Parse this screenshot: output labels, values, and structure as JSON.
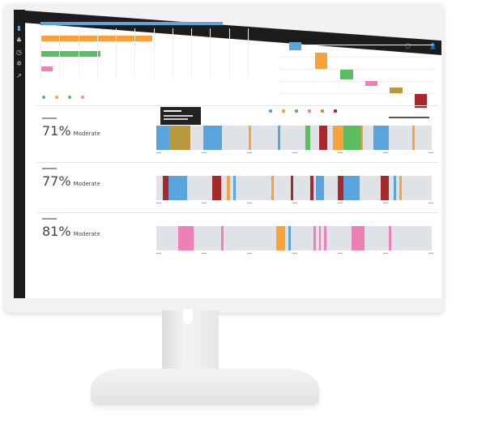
{
  "colors": {
    "blue": "#5aa5dd",
    "orange": "#f7a23b",
    "green": "#5bbd5e",
    "pink": "#ef7fb7",
    "gold": "#b8973e",
    "red": "#a8282b",
    "track": "#dfe3e8"
  },
  "sidebar": {
    "icons": [
      "bar-chart-icon",
      "cluster-icon",
      "clock-icon",
      "gear-icon",
      "line-chart-icon"
    ]
  },
  "topbar": {
    "icons": [
      "help-icon",
      "user-icon"
    ]
  },
  "top_left_chart": {
    "type": "bar",
    "orientation": "horizontal",
    "values_fraction_of_axis": [
      0.88,
      0.54,
      0.29,
      0.06
    ],
    "colors": [
      "blue",
      "orange",
      "green",
      "pink"
    ],
    "legend_count": 4
  },
  "top_right_chart": {
    "type": "waterfall",
    "colors": [
      "blue",
      "orange",
      "green",
      "pink",
      "gold",
      "red"
    ],
    "legend_count": 6
  },
  "rows": [
    {
      "percent": "71%",
      "status": "Moderate",
      "segments": [
        [
          "blue",
          0,
          4.6
        ],
        [
          "gold",
          4.6,
          12.5
        ],
        [
          "blue",
          17,
          23.8
        ],
        [
          "orange",
          33.4,
          34.4
        ],
        [
          "blue",
          44,
          45
        ],
        [
          "green",
          54.1,
          56
        ],
        [
          "red",
          59,
          62
        ],
        [
          "orange",
          64.2,
          68
        ],
        [
          "green",
          68,
          74.4
        ],
        [
          "orange",
          74.4,
          74.9
        ],
        [
          "blue",
          78.7,
          84.5
        ],
        [
          "orange",
          93,
          93.9
        ]
      ]
    },
    {
      "percent": "77%",
      "status": "Moderate",
      "segments": [
        [
          "red",
          2.3,
          4.5
        ],
        [
          "blue",
          4.5,
          11.2
        ],
        [
          "red",
          20.2,
          23.5
        ],
        [
          "orange",
          25.6,
          26.8
        ],
        [
          "blue",
          27.9,
          28.8
        ],
        [
          "orange",
          41.8,
          42.6
        ],
        [
          "red",
          48.9,
          49.8
        ],
        [
          "red",
          56,
          57
        ],
        [
          "blue",
          58,
          61
        ],
        [
          "red",
          66,
          67.9
        ],
        [
          "blue",
          67.9,
          73.8
        ],
        [
          "red",
          81.5,
          84.3
        ],
        [
          "blue",
          86.2,
          87.1
        ],
        [
          "orange",
          88.1,
          89
        ]
      ]
    },
    {
      "percent": "81%",
      "status": "Moderate",
      "segments": [
        [
          "pink",
          7.9,
          13.5
        ],
        [
          "pink",
          23.4,
          24.5
        ],
        [
          "orange",
          43.6,
          46.7
        ],
        [
          "blue",
          47.8,
          48.7
        ],
        [
          "pink",
          57,
          57.8
        ],
        [
          "pink",
          59,
          59.8
        ],
        [
          "pink",
          61,
          61.8
        ],
        [
          "pink",
          70.8,
          75.5
        ],
        [
          "pink",
          84.4,
          85.2
        ]
      ]
    }
  ]
}
